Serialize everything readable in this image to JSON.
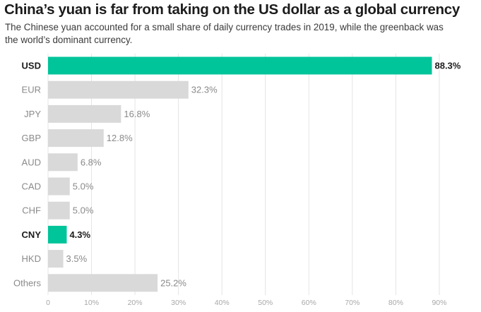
{
  "title": "China’s yuan is far from taking on the US dollar as a global currency",
  "subtitle": "The Chinese yuan accounted for a small share of daily currency trades in 2019, while the greenback was the world’s dominant currency.",
  "colors": {
    "highlight": "#00c49a",
    "default_bar": "#d9d9d9",
    "highlight_text": "#1c1c1c",
    "muted_text": "#8a8a8a",
    "grid": "#e4e4e4"
  },
  "chart_data": {
    "type": "bar",
    "orientation": "horizontal",
    "title": "China’s yuan is far from taking on the US dollar as a global currency",
    "subtitle": "The Chinese yuan accounted for a small share of daily currency trades in 2019, while the greenback was the world’s dominant currency.",
    "xlabel": "",
    "ylabel": "",
    "categories": [
      "USD",
      "EUR",
      "JPY",
      "GBP",
      "AUD",
      "CAD",
      "CHF",
      "CNY",
      "HKD",
      "Others"
    ],
    "values": [
      88.3,
      32.3,
      16.8,
      12.8,
      6.8,
      5.0,
      5.0,
      4.3,
      3.5,
      25.2
    ],
    "value_labels": [
      "88.3%",
      "32.3%",
      "16.8%",
      "12.8%",
      "6.8%",
      "5.0%",
      "5.0%",
      "4.3%",
      "3.5%",
      "25.2%"
    ],
    "highlighted": [
      "USD",
      "CNY"
    ],
    "xlim": [
      0,
      90
    ],
    "xticks": [
      0,
      10,
      20,
      30,
      40,
      50,
      60,
      70,
      80,
      90
    ],
    "xtick_labels": [
      "0",
      "10%",
      "20%",
      "30%",
      "40%",
      "50%",
      "60%",
      "70%",
      "80%",
      "90%"
    ],
    "grid": true
  }
}
